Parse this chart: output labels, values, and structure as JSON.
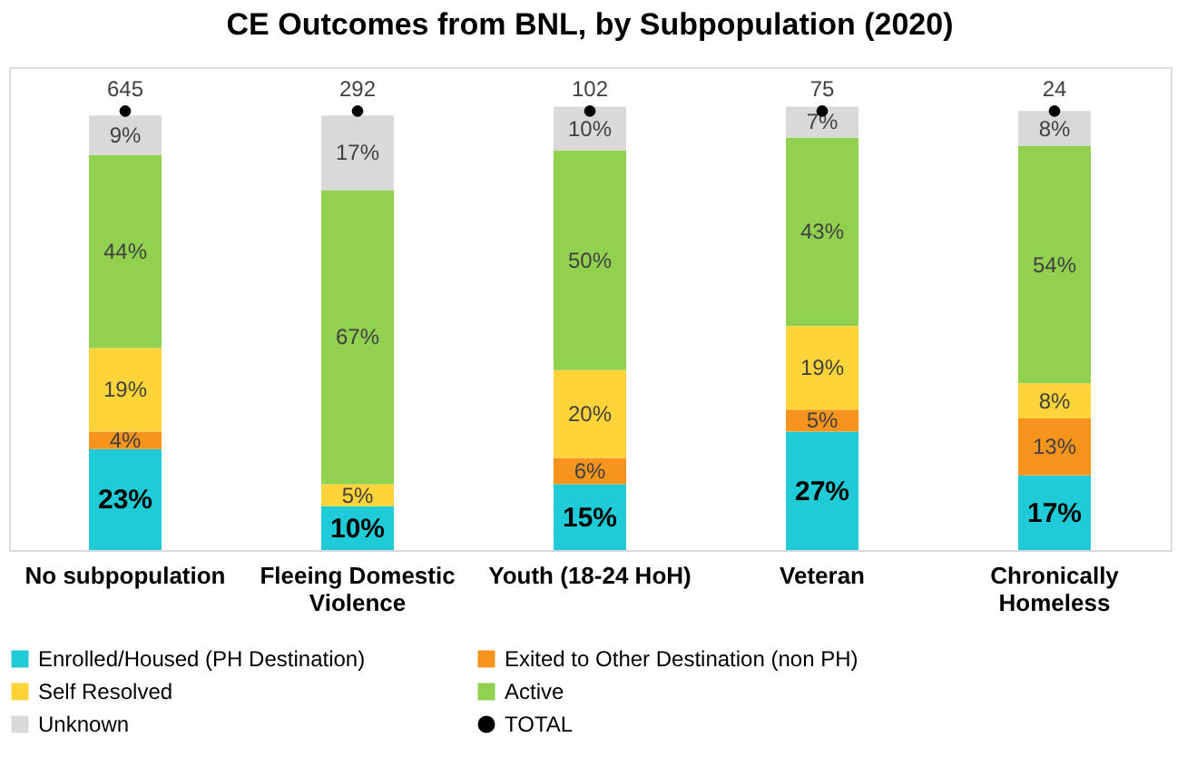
{
  "chart_data": {
    "type": "bar",
    "stacked": true,
    "title": "CE Outcomes from BNL, by Subpopulation (2020)",
    "categories": [
      "No subpopulation",
      "Fleeing Domestic Violence",
      "Youth (18-24 HoH)",
      "Veteran",
      "Chronically Homeless"
    ],
    "series": [
      {
        "name": "Enrolled/Housed (PH Destination)",
        "color": "#1fcbd6",
        "values": [
          23,
          10,
          15,
          27,
          17
        ],
        "value_labels": [
          "23%",
          "10%",
          "15%",
          "27%",
          "17%"
        ]
      },
      {
        "name": "Exited to Other Destination (non PH)",
        "color": "#f7941d",
        "values": [
          4,
          0,
          6,
          5,
          13
        ],
        "value_labels": [
          "4%",
          null,
          "6%",
          "5%",
          "13%"
        ]
      },
      {
        "name": "Self Resolved",
        "color": "#ffd33a",
        "values": [
          19,
          5,
          20,
          19,
          8
        ],
        "value_labels": [
          "19%",
          "5%",
          "20%",
          "19%",
          "8%"
        ]
      },
      {
        "name": "Active",
        "color": "#92d050",
        "values": [
          44,
          67,
          50,
          43,
          54
        ],
        "value_labels": [
          "44%",
          "67%",
          "50%",
          "43%",
          "54%"
        ]
      },
      {
        "name": "Unknown",
        "color": "#d9d9d9",
        "values": [
          9,
          17,
          10,
          7,
          8
        ],
        "value_labels": [
          "9%",
          "17%",
          "10%",
          "7%",
          "8%"
        ]
      },
      {
        "name": "TOTAL",
        "type": "scatter",
        "color": "#000000",
        "marker": "circle",
        "values": [
          100,
          100,
          100,
          100,
          100
        ]
      }
    ],
    "annotations": [
      {
        "text": "645",
        "x": "No subpopulation",
        "y": 100
      },
      {
        "text": "292",
        "x": "Fleeing Domestic Violence",
        "y": 100
      },
      {
        "text": "102",
        "x": "Youth (18-24 HoH)",
        "y": 100
      },
      {
        "text": "75",
        "x": "Veteran",
        "y": 100
      },
      {
        "text": "24",
        "x": "Chronically Homeless",
        "y": 100
      }
    ],
    "ylim": [
      0,
      110
    ],
    "tick_labels": "x",
    "grid": false,
    "legend": "bottom"
  }
}
